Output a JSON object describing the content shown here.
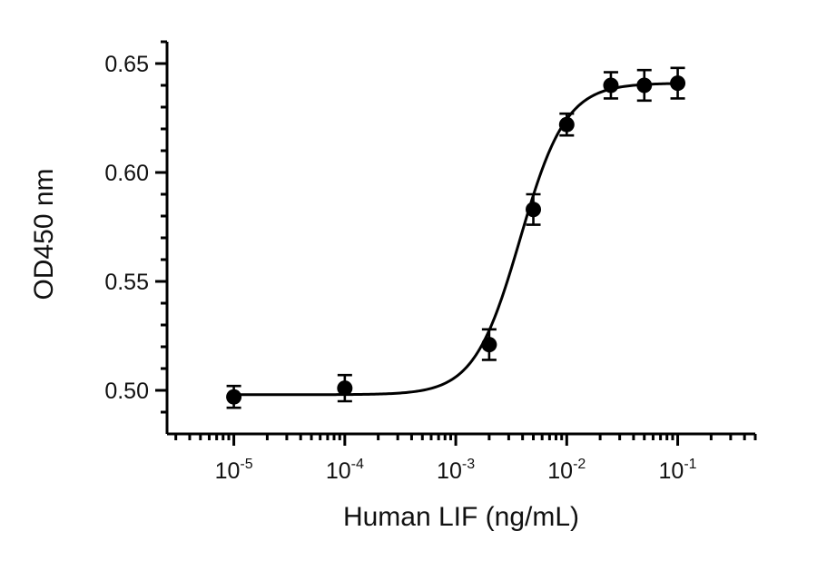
{
  "chart_data": {
    "type": "scatter",
    "xlabel": "Human LIF (ng/mL)",
    "ylabel": "OD450 nm",
    "x_scale": "log",
    "xlim": [
      2.5e-06,
      0.5
    ],
    "ylim": [
      0.48,
      0.66
    ],
    "x_ticks": [
      {
        "base": "10",
        "exp": "-5",
        "value": 1e-05
      },
      {
        "base": "10",
        "exp": "-4",
        "value": 0.0001
      },
      {
        "base": "10",
        "exp": "-3",
        "value": 0.001
      },
      {
        "base": "10",
        "exp": "-2",
        "value": 0.01
      },
      {
        "base": "10",
        "exp": "-1",
        "value": 0.1
      }
    ],
    "y_ticks": [
      {
        "label": "0.50",
        "value": 0.5
      },
      {
        "label": "0.55",
        "value": 0.55
      },
      {
        "label": "0.60",
        "value": 0.6
      },
      {
        "label": "0.65",
        "value": 0.65
      }
    ],
    "points": [
      {
        "x": 1e-05,
        "y": 0.497,
        "err": 0.005
      },
      {
        "x": 0.0001,
        "y": 0.501,
        "err": 0.006
      },
      {
        "x": 0.002,
        "y": 0.521,
        "err": 0.007
      },
      {
        "x": 0.005,
        "y": 0.583,
        "err": 0.007
      },
      {
        "x": 0.01,
        "y": 0.622,
        "err": 0.005
      },
      {
        "x": 0.025,
        "y": 0.64,
        "err": 0.006
      },
      {
        "x": 0.05,
        "y": 0.64,
        "err": 0.007
      },
      {
        "x": 0.1,
        "y": 0.641,
        "err": 0.007
      }
    ],
    "fit": {
      "model": "4PL",
      "bottom": 0.498,
      "top": 0.641,
      "ec50": 0.0038,
      "hill": 2.1
    },
    "grid": false,
    "legend": "none",
    "colors": {
      "marker": "#000000",
      "line": "#000000"
    }
  }
}
